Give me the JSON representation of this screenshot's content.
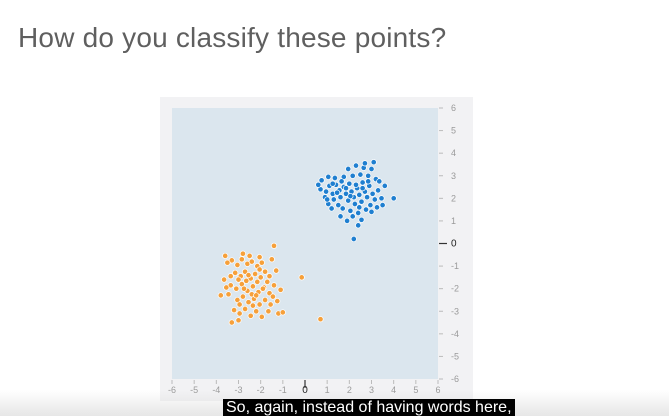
{
  "slide": {
    "title": "How do you classify these points?"
  },
  "caption": {
    "text": "So, again, instead of having words here,"
  },
  "colors": {
    "plot_background": "#dbe6ee",
    "frame": "#f2f2f4",
    "cluster_orange": "#f6a03a",
    "cluster_blue": "#1f7fd0"
  },
  "chart_data": {
    "type": "scatter",
    "title": "",
    "xlabel": "",
    "ylabel": "",
    "xlim": [
      -6,
      6
    ],
    "ylim": [
      -6,
      6
    ],
    "x_ticks": [
      "-6",
      "-5",
      "-4",
      "-3",
      "-2",
      "-1",
      "0",
      "1",
      "2",
      "3",
      "4",
      "5",
      "6"
    ],
    "y_ticks": [
      "6",
      "5",
      "4",
      "3",
      "2",
      "1",
      "0",
      "-1",
      "-2",
      "-3",
      "-4",
      "-5",
      "-6"
    ],
    "grid": false,
    "legend": "none",
    "series": [
      {
        "color": "#1f7fd0",
        "points": [
          [
            0.7,
            2.4
          ],
          [
            0.95,
            2.3
          ],
          [
            1.1,
            2.55
          ],
          [
            0.9,
            2.05
          ],
          [
            1.25,
            2.2
          ],
          [
            1.4,
            2.6
          ],
          [
            1.55,
            2.35
          ],
          [
            1.3,
            1.95
          ],
          [
            1.6,
            2.05
          ],
          [
            1.75,
            2.5
          ],
          [
            1.85,
            2.2
          ],
          [
            2.0,
            2.65
          ],
          [
            2.1,
            2.3
          ],
          [
            1.95,
            1.9
          ],
          [
            2.2,
            2.05
          ],
          [
            2.35,
            2.45
          ],
          [
            2.45,
            2.15
          ],
          [
            2.25,
            1.75
          ],
          [
            2.55,
            1.85
          ],
          [
            2.7,
            2.3
          ],
          [
            2.8,
            2.05
          ],
          [
            2.6,
            2.7
          ],
          [
            2.9,
            2.55
          ],
          [
            3.05,
            2.2
          ],
          [
            3.15,
            1.95
          ],
          [
            2.95,
            1.7
          ],
          [
            3.3,
            2.35
          ],
          [
            1.5,
            1.7
          ],
          [
            1.7,
            1.55
          ],
          [
            2.05,
            1.45
          ],
          [
            2.4,
            1.35
          ],
          [
            2.75,
            1.5
          ],
          [
            3.0,
            1.4
          ],
          [
            1.2,
            1.55
          ],
          [
            1.05,
            1.75
          ],
          [
            1.35,
            2.9
          ],
          [
            1.75,
            2.95
          ],
          [
            2.15,
            3.0
          ],
          [
            2.5,
            3.05
          ],
          [
            2.85,
            3.0
          ],
          [
            3.2,
            2.85
          ],
          [
            1.95,
            3.3
          ],
          [
            2.3,
            3.45
          ],
          [
            2.65,
            3.35
          ],
          [
            3.0,
            3.3
          ],
          [
            0.75,
            2.8
          ],
          [
            3.45,
            2.0
          ],
          [
            3.6,
            2.55
          ],
          [
            1.65,
            2.75
          ],
          [
            2.05,
            2.1
          ],
          [
            2.3,
            2.6
          ],
          [
            2.6,
            2.45
          ],
          [
            1.85,
            2.45
          ],
          [
            2.45,
            1.6
          ],
          [
            1.45,
            2.25
          ],
          [
            2.15,
            1.2
          ],
          [
            2.85,
            2.75
          ],
          [
            1.25,
            2.65
          ],
          [
            3.25,
            1.6
          ],
          [
            3.35,
            2.75
          ],
          [
            0.6,
            2.6
          ],
          [
            2.7,
            3.55
          ],
          [
            3.1,
            3.6
          ],
          [
            1.0,
            1.95
          ],
          [
            1.6,
            1.2
          ],
          [
            2.4,
            0.8
          ],
          [
            2.55,
            1.05
          ],
          [
            4.0,
            2.0
          ],
          [
            2.2,
            0.2
          ],
          [
            1.9,
            1.0
          ],
          [
            1.05,
            2.95
          ],
          [
            3.5,
            1.7
          ]
        ]
      },
      {
        "color": "#f6a03a",
        "points": [
          [
            -3.3,
            -0.75
          ],
          [
            -3.05,
            -0.95
          ],
          [
            -2.85,
            -0.7
          ],
          [
            -2.6,
            -0.9
          ],
          [
            -2.4,
            -0.8
          ],
          [
            -2.15,
            -1.0
          ],
          [
            -1.95,
            -0.85
          ],
          [
            -3.15,
            -1.3
          ],
          [
            -2.9,
            -1.45
          ],
          [
            -2.7,
            -1.25
          ],
          [
            -2.45,
            -1.55
          ],
          [
            -2.25,
            -1.35
          ],
          [
            -2.0,
            -1.5
          ],
          [
            -1.8,
            -1.25
          ],
          [
            -1.6,
            -1.45
          ],
          [
            -3.35,
            -1.85
          ],
          [
            -3.1,
            -2.0
          ],
          [
            -2.85,
            -1.8
          ],
          [
            -2.6,
            -2.1
          ],
          [
            -2.35,
            -1.9
          ],
          [
            -2.1,
            -2.15
          ],
          [
            -1.85,
            -1.95
          ],
          [
            -1.6,
            -2.2
          ],
          [
            -1.4,
            -1.85
          ],
          [
            -3.05,
            -2.5
          ],
          [
            -2.8,
            -2.35
          ],
          [
            -2.55,
            -2.6
          ],
          [
            -2.3,
            -2.45
          ],
          [
            -2.05,
            -2.7
          ],
          [
            -1.8,
            -2.5
          ],
          [
            -1.55,
            -2.7
          ],
          [
            -3.2,
            -2.95
          ],
          [
            -2.95,
            -3.1
          ],
          [
            -2.7,
            -2.9
          ],
          [
            -2.45,
            -3.2
          ],
          [
            -2.2,
            -3.0
          ],
          [
            -1.95,
            -3.25
          ],
          [
            -3.45,
            -2.25
          ],
          [
            -3.65,
            -1.6
          ],
          [
            -3.5,
            -0.85
          ],
          [
            -2.5,
            -0.55
          ],
          [
            -2.05,
            -0.6
          ],
          [
            -1.5,
            -0.7
          ],
          [
            -1.3,
            -1.2
          ],
          [
            -1.25,
            -2.55
          ],
          [
            -1.1,
            -2.05
          ],
          [
            -2.65,
            -1.65
          ],
          [
            -2.4,
            -2.25
          ],
          [
            -2.15,
            -1.7
          ],
          [
            -2.75,
            -2.0
          ],
          [
            -2.2,
            -2.3
          ],
          [
            -1.9,
            -2.0
          ],
          [
            -2.55,
            -1.4
          ],
          [
            -3.0,
            -1.6
          ],
          [
            -1.7,
            -1.7
          ],
          [
            -3.8,
            -2.3
          ],
          [
            -3.3,
            -3.5
          ],
          [
            -3.0,
            -3.4
          ],
          [
            -1.2,
            -3.1
          ],
          [
            -1.0,
            -3.05
          ],
          [
            -0.15,
            -1.5
          ],
          [
            0.7,
            -3.35
          ],
          [
            -1.4,
            -0.1
          ],
          [
            -3.6,
            -0.55
          ],
          [
            -2.95,
            -2.7
          ],
          [
            -2.35,
            -2.75
          ],
          [
            -1.65,
            -3.0
          ],
          [
            -3.35,
            -1.45
          ],
          [
            -1.45,
            -2.35
          ],
          [
            -2.8,
            -0.45
          ],
          [
            -3.55,
            -1.95
          ],
          [
            -2.05,
            -1.15
          ]
        ]
      }
    ]
  }
}
